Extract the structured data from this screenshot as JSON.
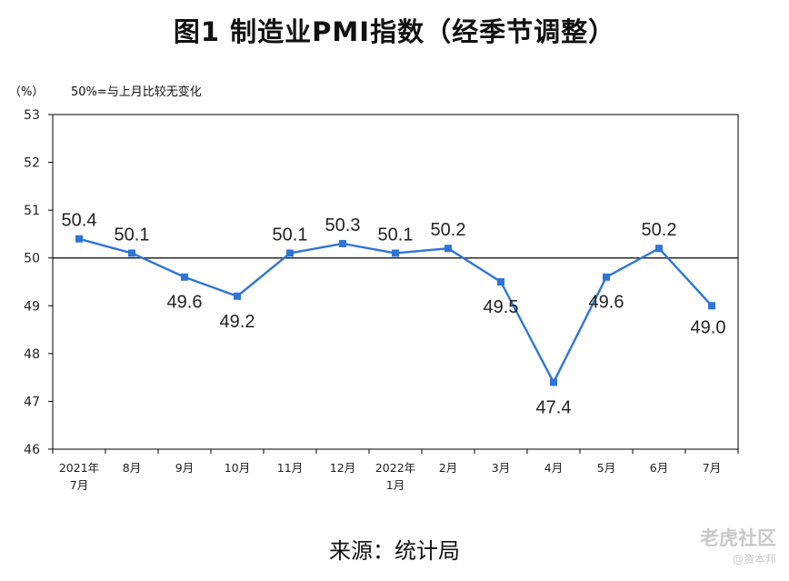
{
  "chart_data": {
    "type": "line",
    "title": "图1 制造业PMI指数（经季节调整）",
    "unit_label": "（%）",
    "note": "50%=与上月比较无变化",
    "categories": [
      [
        "2021年",
        "7月"
      ],
      [
        "8月"
      ],
      [
        "9月"
      ],
      [
        "10月"
      ],
      [
        "11月"
      ],
      [
        "12月"
      ],
      [
        "2022年",
        "1月"
      ],
      [
        "2月"
      ],
      [
        "3月"
      ],
      [
        "4月"
      ],
      [
        "5月"
      ],
      [
        "6月"
      ],
      [
        "7月"
      ]
    ],
    "values": [
      50.4,
      50.1,
      49.6,
      49.2,
      50.1,
      50.3,
      50.1,
      50.2,
      49.5,
      47.4,
      49.6,
      50.2,
      49.0
    ],
    "value_labels": [
      "50.4",
      "50.1",
      "49.6",
      "49.2",
      "50.1",
      "50.3",
      "50.1",
      "50.2",
      "49.5",
      "47.4",
      "49.6",
      "50.2",
      "49.0"
    ],
    "ylim": [
      46,
      53
    ],
    "yticks": [
      46,
      47,
      48,
      49,
      50,
      51,
      52,
      53
    ],
    "reference_line": 50,
    "line_color": "#2e75d6",
    "reference_color": "#000000",
    "grid": false
  },
  "source": "来源：统计局",
  "watermark": {
    "brand": "老虎社区",
    "sub": "@资本邦"
  }
}
